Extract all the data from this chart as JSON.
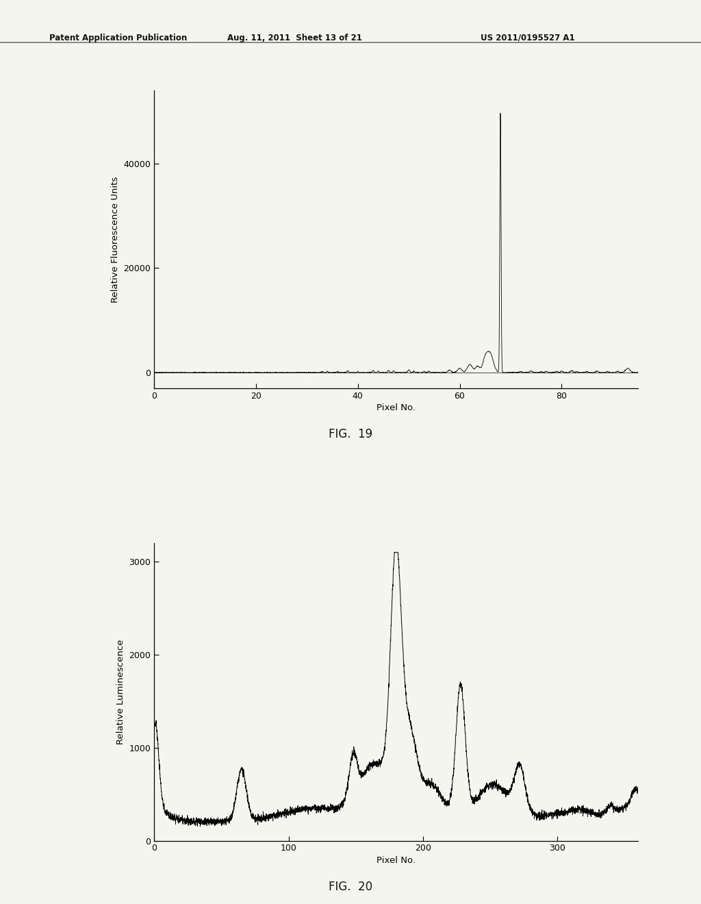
{
  "header_left": "Patent Application Publication",
  "header_mid": "Aug. 11, 2011  Sheet 13 of 21",
  "header_right": "US 2011/0195527 A1",
  "fig1": {
    "caption": "FIG.  19",
    "xlabel": "Pixel No.",
    "ylabel": "Relative Fluorescence Units",
    "xlim": [
      0,
      95
    ],
    "ylim": [
      -3000,
      54000
    ],
    "xticks": [
      0,
      20,
      40,
      60,
      80
    ],
    "yticks": [
      0,
      20000,
      40000
    ],
    "line_color": "#000000"
  },
  "fig2": {
    "caption": "FIG.  20",
    "xlabel": "Pixel No.",
    "ylabel": "Relative Luminescence",
    "xlim": [
      0,
      360
    ],
    "ylim": [
      0,
      3200
    ],
    "xticks": [
      0,
      100,
      200,
      300
    ],
    "yticks": [
      0,
      1000,
      2000,
      3000
    ],
    "line_color": "#000000"
  },
  "background_color": "#f5f5f0",
  "text_color": "#000000"
}
